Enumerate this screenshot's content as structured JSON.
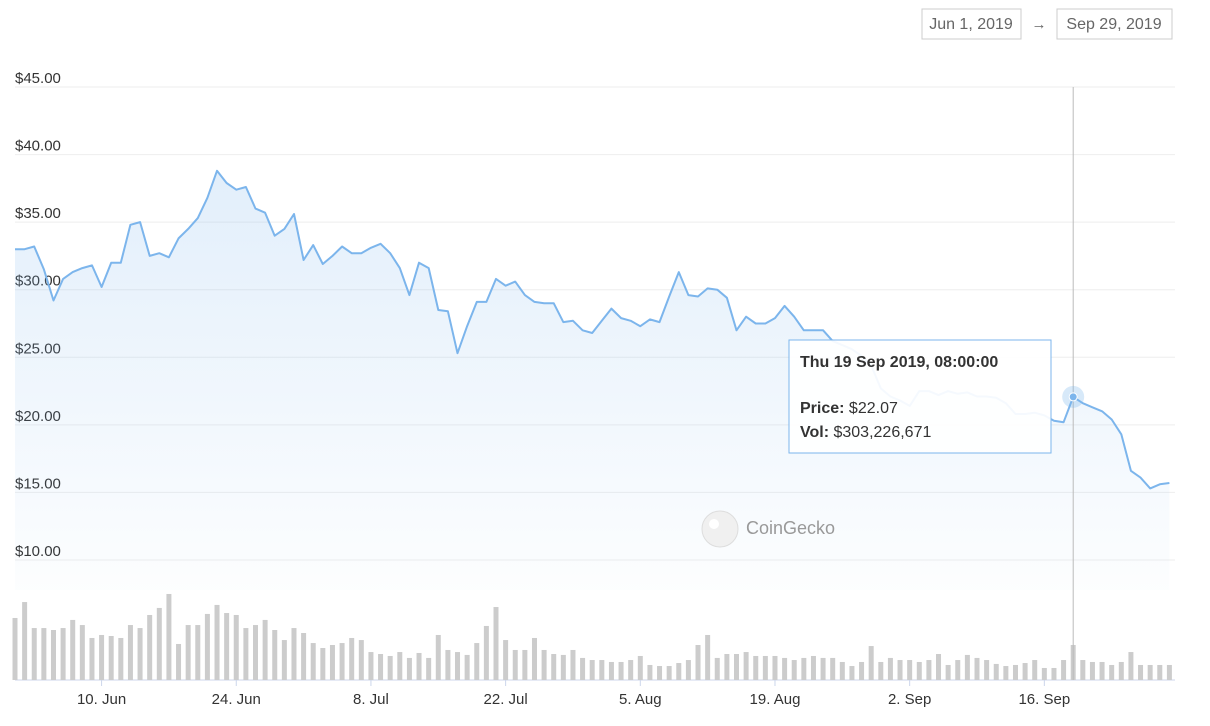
{
  "chart_data": {
    "type": "line",
    "date_from": "Jun 1, 2019",
    "range_separator": "→",
    "date_to": "Sep 29, 2019",
    "watermark": "CoinGecko",
    "x": [
      "2019-06-01",
      "2019-06-02",
      "2019-06-03",
      "2019-06-04",
      "2019-06-05",
      "2019-06-06",
      "2019-06-07",
      "2019-06-08",
      "2019-06-09",
      "2019-06-10",
      "2019-06-11",
      "2019-06-12",
      "2019-06-13",
      "2019-06-14",
      "2019-06-15",
      "2019-06-16",
      "2019-06-17",
      "2019-06-18",
      "2019-06-19",
      "2019-06-20",
      "2019-06-21",
      "2019-06-22",
      "2019-06-23",
      "2019-06-24",
      "2019-06-25",
      "2019-06-26",
      "2019-06-27",
      "2019-06-28",
      "2019-06-29",
      "2019-06-30",
      "2019-07-01",
      "2019-07-02",
      "2019-07-03",
      "2019-07-04",
      "2019-07-05",
      "2019-07-06",
      "2019-07-07",
      "2019-07-08",
      "2019-07-09",
      "2019-07-10",
      "2019-07-11",
      "2019-07-12",
      "2019-07-13",
      "2019-07-14",
      "2019-07-15",
      "2019-07-16",
      "2019-07-17",
      "2019-07-18",
      "2019-07-19",
      "2019-07-20",
      "2019-07-21",
      "2019-07-22",
      "2019-07-23",
      "2019-07-24",
      "2019-07-25",
      "2019-07-26",
      "2019-07-27",
      "2019-07-28",
      "2019-07-29",
      "2019-07-30",
      "2019-07-31",
      "2019-08-01",
      "2019-08-02",
      "2019-08-03",
      "2019-08-04",
      "2019-08-05",
      "2019-08-06",
      "2019-08-07",
      "2019-08-08",
      "2019-08-09",
      "2019-08-10",
      "2019-08-11",
      "2019-08-12",
      "2019-08-13",
      "2019-08-14",
      "2019-08-15",
      "2019-08-16",
      "2019-08-17",
      "2019-08-18",
      "2019-08-19",
      "2019-08-20",
      "2019-08-21",
      "2019-08-22",
      "2019-08-23",
      "2019-08-24",
      "2019-08-25",
      "2019-08-26",
      "2019-08-27",
      "2019-08-28",
      "2019-08-29",
      "2019-08-30",
      "2019-08-31",
      "2019-09-01",
      "2019-09-02",
      "2019-09-03",
      "2019-09-04",
      "2019-09-05",
      "2019-09-06",
      "2019-09-07",
      "2019-09-08",
      "2019-09-09",
      "2019-09-10",
      "2019-09-11",
      "2019-09-12",
      "2019-09-13",
      "2019-09-14",
      "2019-09-15",
      "2019-09-16",
      "2019-09-17",
      "2019-09-18",
      "2019-09-19",
      "2019-09-20",
      "2019-09-21",
      "2019-09-22",
      "2019-09-23",
      "2019-09-24",
      "2019-09-25",
      "2019-09-26",
      "2019-09-27",
      "2019-09-28",
      "2019-09-29"
    ],
    "series": [
      {
        "color": "#7cb5ec",
        "values": [
          33.0,
          33.0,
          33.2,
          31.5,
          29.2,
          30.8,
          31.3,
          31.6,
          31.8,
          30.2,
          32.0,
          32.0,
          34.8,
          35.0,
          32.5,
          32.7,
          32.4,
          33.8,
          34.5,
          35.3,
          36.8,
          38.8,
          37.9,
          37.4,
          37.6,
          36.0,
          35.7,
          34.0,
          34.5,
          35.6,
          32.2,
          33.3,
          31.9,
          32.5,
          33.2,
          32.7,
          32.7,
          33.1,
          33.4,
          32.7,
          31.6,
          29.6,
          32.0,
          31.6,
          28.5,
          28.4,
          25.3,
          27.3,
          29.1,
          29.1,
          30.8,
          30.3,
          30.6,
          29.6,
          29.1,
          29.0,
          29.0,
          27.6,
          27.7,
          27.0,
          26.8,
          27.7,
          28.6,
          27.9,
          27.7,
          27.3,
          27.8,
          27.6,
          29.5,
          31.3,
          29.6,
          29.5,
          30.1,
          30.0,
          29.4,
          27.0,
          28.0,
          27.5,
          27.5,
          27.9,
          28.8,
          28.0,
          27.0,
          27.0,
          27.0,
          26.2,
          25.9,
          25.6,
          25.1,
          24.4,
          22.7,
          22.1,
          21.8,
          21.4,
          22.5,
          22.5,
          22.2,
          22.5,
          22.3,
          22.4,
          22.1,
          22.1,
          22.0,
          21.6,
          20.8,
          20.8,
          20.9,
          20.7,
          20.3,
          20.2,
          22.07,
          21.6,
          21.3,
          21.0,
          20.4,
          19.3,
          16.6,
          16.1,
          15.3,
          15.6,
          15.7
        ]
      },
      {
        "color": "#cccccc",
        "axis": "y2",
        "values": [
          537000000,
          675000000,
          450000000,
          450000000,
          433000000,
          450000000,
          520000000,
          476000000,
          364000000,
          390000000,
          381000000,
          364000000,
          476000000,
          450000000,
          563000000,
          624000000,
          745000000,
          312000000,
          476000000,
          476000000,
          572000000,
          650000000,
          580000000,
          563000000,
          450000000,
          476000000,
          520000000,
          433000000,
          346000000,
          450000000,
          407000000,
          320000000,
          277000000,
          303000000,
          320000000,
          364000000,
          346000000,
          242000000,
          225000000,
          208000000,
          242000000,
          191000000,
          234000000,
          191000000,
          390000000,
          260000000,
          242000000,
          217000000,
          320000000,
          468000000,
          632000000,
          346000000,
          260000000,
          260000000,
          364000000,
          260000000,
          225000000,
          217000000,
          260000000,
          191000000,
          173000000,
          173000000,
          156000000,
          156000000,
          173000000,
          208000000,
          130000000,
          121000000,
          121000000,
          147000000,
          173000000,
          303000000,
          390000000,
          191000000,
          225000000,
          225000000,
          242000000,
          208000000,
          208000000,
          208000000,
          191000000,
          173000000,
          191000000,
          208000000,
          191000000,
          191000000,
          156000000,
          121000000,
          156000000,
          294000000,
          156000000,
          191000000,
          173000000,
          173000000,
          156000000,
          173000000,
          225000000,
          130000000,
          173000000,
          217000000,
          191000000,
          173000000,
          139000000,
          121000000,
          130000000,
          147000000,
          173000000,
          104000000,
          104000000,
          173000000,
          303226671,
          173000000,
          156000000,
          156000000,
          130000000,
          156000000,
          242000000,
          130000000,
          130000000,
          130000000,
          130000000
        ]
      }
    ],
    "ylim": [
      10,
      45
    ],
    "yticks": [
      {
        "value": 10,
        "label": "$10.00"
      },
      {
        "value": 15,
        "label": "$15.00"
      },
      {
        "value": 20,
        "label": "$20.00"
      },
      {
        "value": 25,
        "label": "$25.00"
      },
      {
        "value": 30,
        "label": "$30.00"
      },
      {
        "value": 35,
        "label": "$35.00"
      },
      {
        "value": 40,
        "label": "$40.00"
      },
      {
        "value": 45,
        "label": "$45.00"
      }
    ],
    "xticks": [
      {
        "value": "2019-06-10",
        "label": "10. Jun"
      },
      {
        "value": "2019-06-24",
        "label": "24. Jun"
      },
      {
        "value": "2019-07-08",
        "label": "8. Jul"
      },
      {
        "value": "2019-07-22",
        "label": "22. Jul"
      },
      {
        "value": "2019-08-05",
        "label": "5. Aug"
      },
      {
        "value": "2019-08-19",
        "label": "19. Aug"
      },
      {
        "value": "2019-09-02",
        "label": "2. Sep"
      },
      {
        "value": "2019-09-16",
        "label": "16. Sep"
      }
    ],
    "grid": true,
    "tooltip": {
      "x": "2019-09-19",
      "title": "Thu 19 Sep 2019, 08:00:00",
      "rows": [
        {
          "label": "Price:",
          "value": 22.07,
          "value_label": "$22.07"
        },
        {
          "label": "Vol:",
          "value": 303226671,
          "value_label": "$303,226,671"
        }
      ]
    }
  }
}
